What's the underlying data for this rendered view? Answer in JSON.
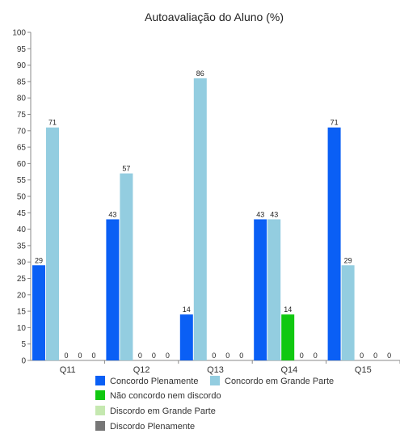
{
  "chart_data": {
    "type": "bar",
    "title": "Autoavaliação do Aluno (%)",
    "xlabel": "",
    "ylabel": "",
    "ylim": [
      0,
      100
    ],
    "ytick_step": 5,
    "grid": false,
    "legend_position": "bottom",
    "categories": [
      "Q11",
      "Q12",
      "Q13",
      "Q14",
      "Q15"
    ],
    "series": [
      {
        "name": "Concordo Plenamente",
        "color": "#0a5ff5",
        "values": [
          29,
          43,
          14,
          43,
          71
        ]
      },
      {
        "name": "Concordo em Grande Parte",
        "color": "#93cde0",
        "values": [
          71,
          57,
          86,
          43,
          29
        ]
      },
      {
        "name": "Não concordo nem discordo",
        "color": "#10c810",
        "values": [
          0,
          0,
          0,
          14,
          0
        ]
      },
      {
        "name": "Discordo em Grande Parte",
        "color": "#c5e8b0",
        "values": [
          0,
          0,
          0,
          0,
          0
        ]
      },
      {
        "name": "Discordo Plenamente",
        "color": "#777777",
        "values": [
          0,
          0,
          0,
          0,
          0
        ]
      }
    ]
  }
}
